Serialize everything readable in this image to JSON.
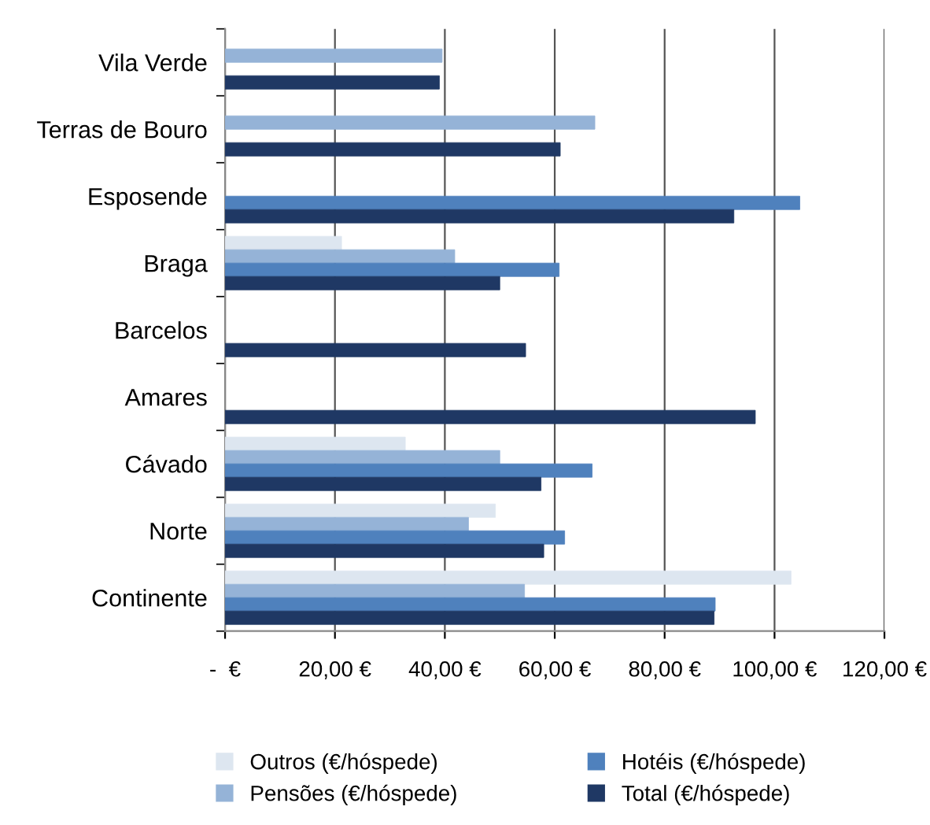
{
  "chart_data": {
    "type": "bar",
    "orientation": "horizontal",
    "categories": [
      "Vila Verde",
      "Terras de Bouro",
      "Esposende",
      "Braga",
      "Barcelos",
      "Amares",
      "Cávado",
      "Norte",
      "Continente"
    ],
    "series": [
      {
        "name": "Outros (€/hóspede)",
        "color": "#dde6f0",
        "values": [
          null,
          null,
          null,
          21.2,
          null,
          null,
          32.8,
          49.2,
          103
        ]
      },
      {
        "name": "Pensões (€/hóspede)",
        "color": "#95b3d7",
        "values": [
          39.5,
          67.3,
          null,
          41.8,
          null,
          null,
          50,
          44.3,
          54.5
        ]
      },
      {
        "name": "Hotéis (€/hóspede)",
        "color": "#4f81bd",
        "values": [
          null,
          null,
          104.6,
          60.8,
          null,
          null,
          66.8,
          61.8,
          89.2
        ]
      },
      {
        "name": "Total (€/hóspede)",
        "color": "#1f3864",
        "values": [
          39,
          61,
          92.6,
          50,
          54.7,
          96.5,
          57.5,
          58,
          89
        ]
      }
    ],
    "xlim": [
      0,
      120
    ],
    "xticks": [
      {
        "value": 0,
        "label": "-  €"
      },
      {
        "value": 20,
        "label": "20,00 €"
      },
      {
        "value": 40,
        "label": "40,00 €"
      },
      {
        "value": 60,
        "label": "60,00 €"
      },
      {
        "value": 80,
        "label": "80,00 €"
      },
      {
        "value": 100,
        "label": "100,00 €"
      },
      {
        "value": 120,
        "label": "120,00 €"
      }
    ],
    "grid": "x",
    "legend": "bottom"
  }
}
